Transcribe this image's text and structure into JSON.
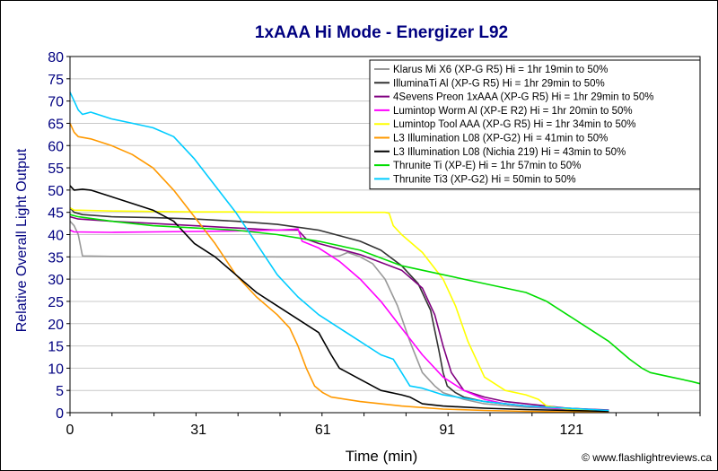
{
  "chart_data": {
    "type": "line",
    "title": "1xAAA Hi Mode - Energizer L92",
    "xlabel": "Time (min)",
    "ylabel": "Relative Overall Light Output",
    "credit": "© www.flashlightreviews.ca",
    "xlim": [
      0,
      152
    ],
    "ylim": [
      0,
      80
    ],
    "xticks": [
      0,
      31,
      61,
      91,
      121
    ],
    "yticks": [
      0,
      5,
      10,
      15,
      20,
      25,
      30,
      35,
      40,
      45,
      50,
      55,
      60,
      65,
      70,
      75,
      80
    ],
    "grid": "y-major",
    "legend_position": "top-right",
    "series": [
      {
        "name": "Klarus Mi X6 (XP-G R5) Hi = 1hr 19min to 50%",
        "color": "#999999",
        "x": [
          0,
          1,
          2,
          3,
          10,
          30,
          50,
          60,
          65,
          67,
          70,
          73,
          76,
          79,
          82,
          85,
          88,
          90,
          95,
          100,
          110,
          120,
          130
        ],
        "y": [
          43,
          42,
          40,
          35.2,
          35.1,
          35.1,
          35,
          35,
          35.2,
          36,
          35,
          33.5,
          30,
          24,
          16,
          9,
          6,
          4.5,
          3,
          2,
          1.2,
          0.7,
          0.4
        ]
      },
      {
        "name": "IlluminaTi Al (XP-G R5) Hi = 1hr 29min to 50%",
        "color": "#333333",
        "x": [
          0,
          1,
          3,
          10,
          20,
          30,
          40,
          50,
          60,
          70,
          75,
          80,
          84,
          87,
          89,
          90,
          91,
          93,
          95,
          100,
          110,
          120,
          130
        ],
        "y": [
          46,
          45,
          44.5,
          44,
          43.8,
          43.5,
          43,
          42.3,
          41,
          38.5,
          36.5,
          33,
          29,
          23,
          14,
          9,
          6,
          4.5,
          3.5,
          2.5,
          1.5,
          1,
          0.5
        ]
      },
      {
        "name": "4Sevens Preon 1xAAA (XP-G R5) Hi = 1hr 29min to 50%",
        "color": "#800080",
        "x": [
          0,
          2,
          10,
          20,
          30,
          40,
          50,
          55,
          57,
          60,
          70,
          80,
          85,
          88,
          90,
          92,
          95,
          100,
          105,
          110,
          120,
          130
        ],
        "y": [
          44,
          43.5,
          43,
          42.5,
          42,
          41.5,
          41,
          41,
          39,
          38,
          35.5,
          32,
          28,
          22,
          15,
          9,
          5,
          3.5,
          2.5,
          2,
          1,
          0.6
        ]
      },
      {
        "name": "Lumintop Worm Al (XP-E R2) Hi = 1hr 20min to 50%",
        "color": "#FF00FF",
        "x": [
          0,
          1,
          10,
          20,
          30,
          40,
          50,
          54,
          55,
          56,
          60,
          65,
          70,
          75,
          80,
          85,
          90,
          95,
          100,
          105,
          110,
          120,
          130
        ],
        "y": [
          41,
          40.6,
          40.5,
          40.6,
          40.7,
          40.8,
          41,
          41.2,
          41.3,
          38.5,
          37,
          34,
          30,
          25,
          19,
          13,
          8,
          5,
          3,
          2,
          1.5,
          0.8,
          0.4
        ]
      },
      {
        "name": "Lumintop Tool AAA (XP-G R5) Hi = 1hr 34min to 50%",
        "color": "#FFFF00",
        "x": [
          0,
          1,
          10,
          20,
          30,
          40,
          50,
          60,
          70,
          76,
          77,
          78,
          80,
          85,
          90,
          93,
          96,
          98,
          100,
          105,
          110,
          113,
          115,
          120,
          130
        ],
        "y": [
          46,
          45.5,
          45.3,
          45.2,
          45.1,
          45.1,
          45,
          45,
          45,
          45,
          44.8,
          42,
          40,
          36,
          30,
          24,
          16,
          12,
          8,
          5,
          4,
          3,
          1.5,
          0.8,
          0.4
        ]
      },
      {
        "name": "L3 Illumination L08 (XP-G2) Hi = 41min to 50%",
        "color": "#FF9900",
        "x": [
          0,
          1,
          2,
          5,
          10,
          15,
          20,
          25,
          30,
          35,
          40,
          45,
          50,
          53,
          55,
          57,
          59,
          61,
          63,
          70,
          80,
          90,
          100,
          110,
          120,
          130
        ],
        "y": [
          65,
          63,
          62,
          61.5,
          60,
          58,
          55,
          50,
          44,
          38,
          31,
          26,
          22,
          19,
          15,
          10,
          6,
          4.5,
          3.5,
          2.5,
          1.5,
          0.8,
          0.5,
          0.3,
          0.2,
          0.1
        ]
      },
      {
        "name": "L3 Illumination L08 (Nichia 219) Hi = 43min to 50%",
        "color": "#000000",
        "x": [
          0,
          1,
          3,
          5,
          10,
          15,
          20,
          25,
          30,
          35,
          40,
          45,
          50,
          55,
          60,
          63,
          65,
          70,
          75,
          80,
          82,
          85,
          90,
          100,
          110,
          120,
          130
        ],
        "y": [
          51,
          50,
          50.2,
          50,
          48.5,
          47,
          45.5,
          43,
          38,
          35,
          31,
          27,
          24,
          21,
          18,
          13,
          10,
          7.5,
          5,
          4,
          3.5,
          2,
          1.5,
          1,
          0.7,
          0.5,
          0.3
        ]
      },
      {
        "name": "Thrunite Ti (XP-E) Hi = 1hr 57min to 50%",
        "color": "#00DD00",
        "x": [
          0,
          2,
          10,
          20,
          30,
          40,
          50,
          60,
          70,
          80,
          90,
          100,
          110,
          115,
          120,
          125,
          130,
          135,
          138,
          140,
          145,
          150,
          152
        ],
        "y": [
          44.5,
          44,
          43,
          42,
          41.5,
          41,
          40,
          38.5,
          36.5,
          33,
          31,
          29,
          27,
          25,
          22,
          19,
          16,
          12,
          10,
          9,
          8,
          7,
          6.5
        ]
      },
      {
        "name": "Thrunite Ti3 (XP-G2) Hi = 50min to 50%",
        "color": "#00CCFF",
        "x": [
          0,
          1,
          2,
          3,
          5,
          10,
          15,
          20,
          25,
          30,
          35,
          40,
          45,
          50,
          55,
          60,
          65,
          70,
          75,
          78,
          80,
          82,
          85,
          90,
          100,
          110,
          120,
          130
        ],
        "y": [
          72,
          70,
          68,
          67,
          67.5,
          66,
          65,
          64,
          62,
          57,
          51,
          45,
          38,
          31,
          26,
          22,
          19,
          16,
          13,
          12,
          9,
          6,
          5.5,
          4,
          2.5,
          1.5,
          1,
          0.5
        ]
      }
    ]
  }
}
